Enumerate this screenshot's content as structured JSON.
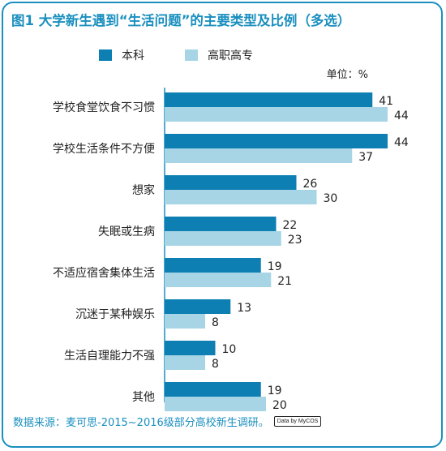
{
  "chart_data": {
    "type": "bar",
    "orientation": "horizontal",
    "title": "图1 大学新生遇到“生活问题”的主要类型及比例（多选）",
    "unit": "单位：%",
    "categories": [
      "学校食堂饮食不习惯",
      "学校生活条件不方便",
      "想家",
      "失眠或生病",
      "不适应宿舍集体生活",
      "沉迷于某种娱乐",
      "生活自理能力不强",
      "其他"
    ],
    "series": [
      {
        "name": "本科",
        "color": "#0d7fb3",
        "values": [
          41,
          44,
          26,
          22,
          19,
          13,
          10,
          19
        ]
      },
      {
        "name": "高职高专",
        "color": "#a7d5e6",
        "values": [
          44,
          37,
          30,
          23,
          21,
          8,
          8,
          20
        ]
      }
    ],
    "xlim": [
      0,
      44
    ],
    "legend_position": "top",
    "grid": false
  },
  "source": "数据来源：麦可思-2015~2016级部分高校新生调研。",
  "logo_text": "Data by MyCOS"
}
